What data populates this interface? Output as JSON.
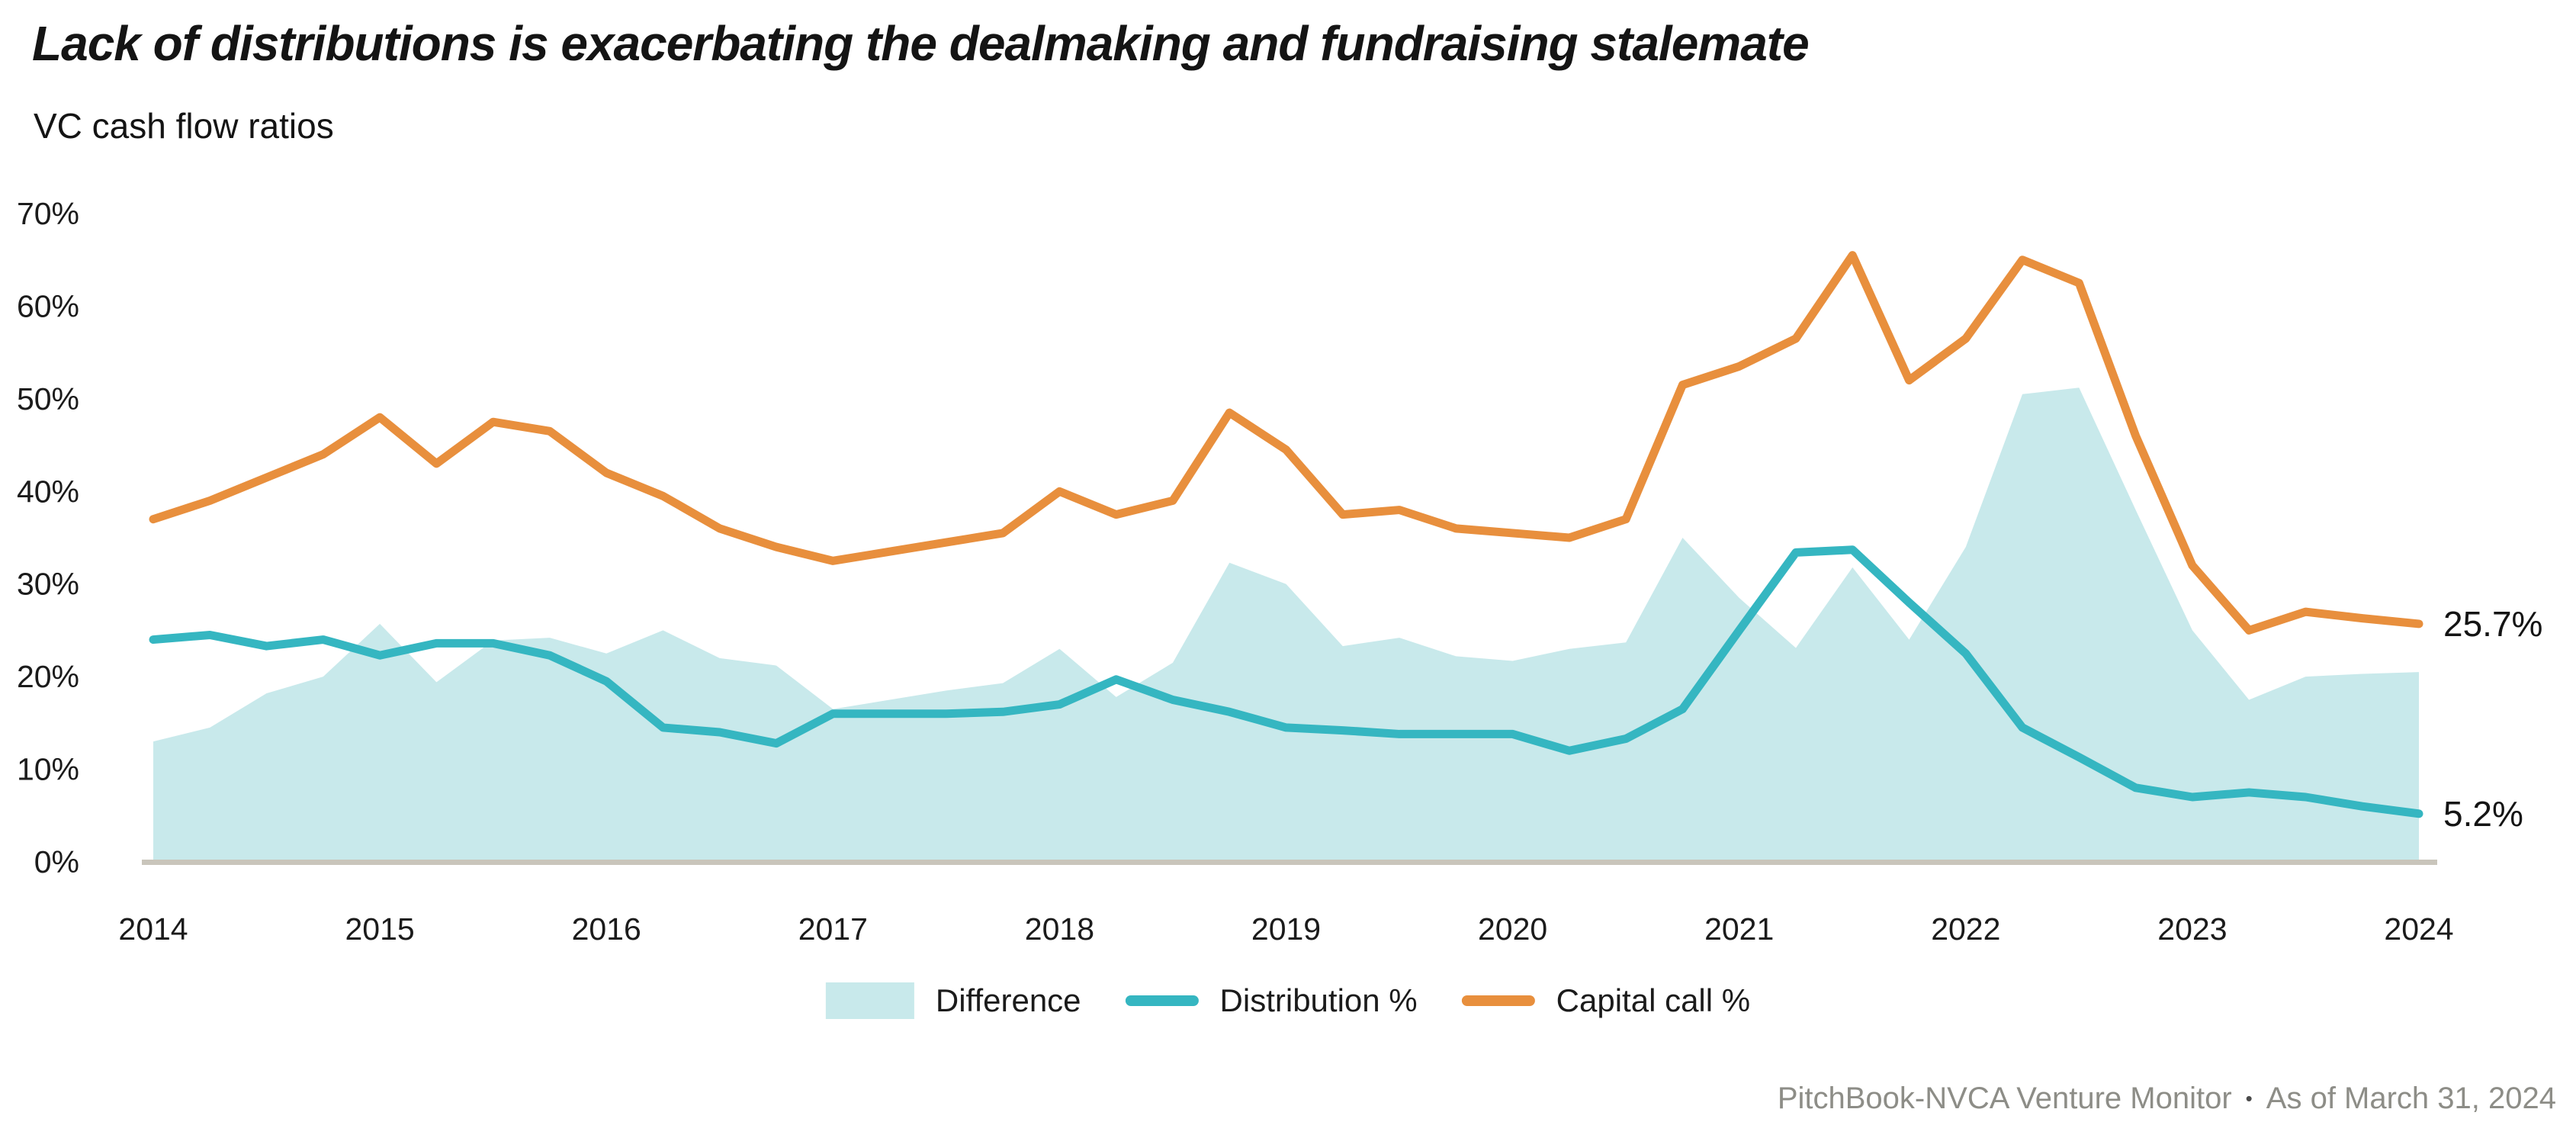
{
  "header": {
    "title": "Lack of distributions is exacerbating the dealmaking and fundraising stalemate",
    "subtitle": "VC cash flow ratios"
  },
  "legend": {
    "difference": "Difference",
    "distribution": "Distribution %",
    "capital_call": "Capital call %"
  },
  "footer": {
    "source": "PitchBook-NVCA Venture Monitor",
    "separator": "•",
    "as_of": "As of March 31, 2024"
  },
  "colors": {
    "difference_area": "#c8e9eb",
    "distribution_line": "#35b6c1",
    "capital_call_line": "#e88f3d",
    "baseline": "#c9c5bb",
    "tick_text": "#1b1b1b",
    "footer_text": "#8d8d87"
  },
  "chart_data": {
    "type": "area+line",
    "title": "Lack of distributions is exacerbating the dealmaking and fundraising stalemate",
    "subtitle": "VC cash flow ratios",
    "x_unit": "quarter",
    "quarters": [
      "2014 Q1",
      "2014 Q2",
      "2014 Q3",
      "2014 Q4",
      "2015 Q1",
      "2015 Q2",
      "2015 Q3",
      "2015 Q4",
      "2016 Q1",
      "2016 Q2",
      "2016 Q3",
      "2016 Q4",
      "2017 Q1",
      "2017 Q2",
      "2017 Q3",
      "2017 Q4",
      "2018 Q1",
      "2018 Q2",
      "2018 Q3",
      "2018 Q4",
      "2019 Q1",
      "2019 Q2",
      "2019 Q3",
      "2019 Q4",
      "2020 Q1",
      "2020 Q2",
      "2020 Q3",
      "2020 Q4",
      "2021 Q1",
      "2021 Q2",
      "2021 Q3",
      "2021 Q4",
      "2022 Q1",
      "2022 Q2",
      "2022 Q3",
      "2022 Q4",
      "2023 Q1",
      "2023 Q2",
      "2023 Q3",
      "2023 Q4",
      "2024 Q1"
    ],
    "x_tick_labels": [
      "2014",
      "2015",
      "2016",
      "2017",
      "2018",
      "2019",
      "2020",
      "2021",
      "2022",
      "2023",
      "2024"
    ],
    "x_tick_quarter_indices": [
      0,
      4,
      8,
      12,
      16,
      20,
      24,
      28,
      32,
      36,
      40
    ],
    "y_ticks": [
      0,
      10,
      20,
      30,
      40,
      50,
      60,
      70
    ],
    "y_tick_labels": [
      "0%",
      "10%",
      "20%",
      "30%",
      "40%",
      "50%",
      "60%",
      "70%"
    ],
    "ylim": [
      0,
      70
    ],
    "grid": "none",
    "legend_position": "bottom-center",
    "series": [
      {
        "key": "difference",
        "name": "Difference",
        "type": "area",
        "color": "#c8e9eb",
        "values": [
          13.0,
          14.5,
          18.2,
          20.0,
          25.7,
          19.4,
          23.9,
          24.2,
          22.5,
          25.0,
          22.0,
          21.2,
          16.5,
          17.5,
          18.5,
          19.3,
          23.0,
          17.8,
          21.5,
          32.3,
          30.0,
          23.3,
          24.2,
          22.2,
          21.7,
          23.0,
          23.7,
          35.0,
          28.5,
          23.1,
          31.8,
          24.0,
          34.0,
          50.5,
          51.2,
          38.0,
          25.0,
          17.5,
          20.0,
          20.3,
          20.5
        ]
      },
      {
        "key": "distribution",
        "name": "Distribution %",
        "type": "line",
        "color": "#35b6c1",
        "values": [
          24.0,
          24.5,
          23.3,
          24.0,
          22.3,
          23.6,
          23.6,
          22.3,
          19.5,
          14.5,
          14.0,
          12.8,
          16.0,
          16.0,
          16.0,
          16.2,
          17.0,
          19.7,
          17.5,
          16.2,
          14.5,
          14.2,
          13.8,
          13.8,
          13.8,
          12.0,
          13.3,
          16.5,
          25.0,
          33.4,
          33.7,
          28.0,
          22.5,
          14.5,
          11.3,
          8.0,
          7.0,
          7.5,
          7.0,
          6.0,
          5.2
        ]
      },
      {
        "key": "capital_call",
        "name": "Capital call %",
        "type": "line",
        "color": "#e88f3d",
        "values": [
          37.0,
          39.0,
          41.5,
          44.0,
          48.0,
          43.0,
          47.5,
          46.5,
          42.0,
          39.5,
          36.0,
          34.0,
          32.5,
          33.5,
          34.5,
          35.5,
          40.0,
          37.5,
          39.0,
          48.5,
          44.5,
          37.5,
          38.0,
          36.0,
          35.5,
          35.0,
          37.0,
          51.5,
          53.5,
          56.5,
          65.5,
          52.0,
          56.5,
          65.0,
          62.5,
          46.0,
          32.0,
          25.0,
          27.0,
          26.3,
          25.7
        ]
      }
    ],
    "end_labels": {
      "capital_call": "25.7%",
      "distribution": "5.2%"
    },
    "end_label_values": {
      "capital_call": 25.7,
      "distribution": 5.2
    }
  }
}
